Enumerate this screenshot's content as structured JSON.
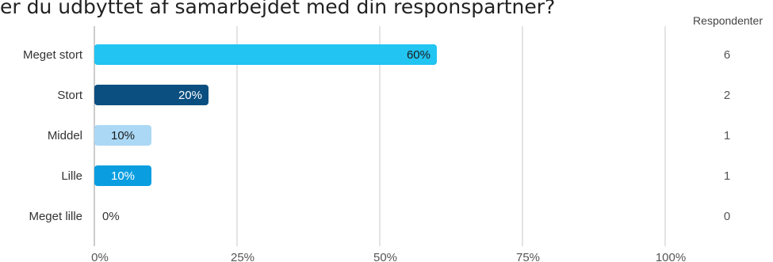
{
  "chart_data": {
    "type": "bar",
    "orientation": "horizontal",
    "title": "er du udbyttet af samarbejdet med din responspartner?",
    "categories": [
      "Meget stort",
      "Stort",
      "Middel",
      "Lille",
      "Meget lille"
    ],
    "values": [
      60,
      20,
      10,
      10,
      0
    ],
    "value_labels": [
      "60%",
      "20%",
      "10%",
      "10%",
      "0%"
    ],
    "counts": [
      6,
      2,
      1,
      1,
      0
    ],
    "counts_header": "Respondenter",
    "x_ticks": [
      "0%",
      "25%",
      "50%",
      "75%",
      "100%"
    ],
    "xlim": [
      0,
      100
    ],
    "grid": true,
    "colors": [
      "#22c4f2",
      "#0b4f80",
      "#abd8f5",
      "#0a9ee0",
      "#22c4f2"
    ],
    "label_colors": [
      "#1a1a1a",
      "#ffffff",
      "#1a1a1a",
      "#ffffff",
      "#333333"
    ]
  }
}
